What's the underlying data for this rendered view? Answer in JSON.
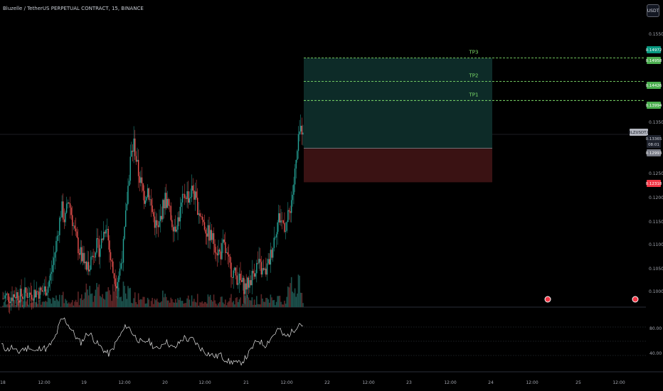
{
  "header": {
    "title": "Bluzelle / TetherUS PERPETUAL CONTRACT, 15, BINANCE",
    "currency_button": "USDT"
  },
  "colors": {
    "background": "#000000",
    "up": "#26a69a",
    "down": "#ef5350",
    "target_zone": "#0d2b28",
    "stop_zone": "#3a1213",
    "tp_line": "#7ddc6a",
    "rsi_line": "#e6e6e6"
  },
  "chart_data": {
    "type": "candlestick",
    "symbol": "BLZUSDT.P",
    "interval": "15",
    "price_axis": {
      "ticks": [
        "0.15500",
        "0.13500",
        "0.12500",
        "0.12000",
        "0.11500",
        "0.11000",
        "0.10500",
        "0.10000"
      ],
      "range": [
        0.0965,
        0.159
      ]
    },
    "time_axis": {
      "ticks": [
        "18",
        "12:00",
        "19",
        "12:00",
        "20",
        "12:00",
        "21",
        "12:00",
        "22",
        "12:00",
        "23",
        "12:00",
        "24",
        "12:00",
        "25",
        "12:00"
      ]
    },
    "price_close_path": [
      0.0985,
      0.099,
      0.0988,
      0.0992,
      0.0995,
      0.099,
      0.0993,
      0.0996,
      0.0994,
      0.0998,
      0.1,
      0.0998,
      0.1003,
      0.101,
      0.104,
      0.108,
      0.113,
      0.118,
      0.115,
      0.12,
      0.116,
      0.112,
      0.109,
      0.107,
      0.105,
      0.106,
      0.108,
      0.11,
      0.109,
      0.112,
      0.115,
      0.108,
      0.104,
      0.102,
      0.105,
      0.11,
      0.12,
      0.128,
      0.131,
      0.126,
      0.123,
      0.12,
      0.122,
      0.118,
      0.115,
      0.113,
      0.117,
      0.12,
      0.118,
      0.115,
      0.114,
      0.116,
      0.119,
      0.121,
      0.12,
      0.122,
      0.119,
      0.117,
      0.115,
      0.113,
      0.112,
      0.111,
      0.109,
      0.108,
      0.11,
      0.107,
      0.105,
      0.104,
      0.103,
      0.102,
      0.101,
      0.1015,
      0.103,
      0.105,
      0.106,
      0.1045,
      0.104,
      0.106,
      0.109,
      0.113,
      0.116,
      0.115,
      0.114,
      0.117,
      0.121,
      0.127,
      0.133,
      0.1345
    ],
    "trade_setup": {
      "entry": 0.12993,
      "stop": 0.12318,
      "targets": [
        {
          "label": "TP1",
          "price": 0.13994
        },
        {
          "label": "TP2",
          "price": 0.14426
        },
        {
          "label": "TP3",
          "price": 0.14958
        }
      ]
    },
    "price_tags": [
      {
        "text": "0.14972",
        "color": "#089981"
      },
      {
        "text": "0.14958",
        "color": "#4caf50"
      },
      {
        "text": "0.14426",
        "color": "#4caf50"
      },
      {
        "text": "0.13994",
        "color": "#4caf50"
      },
      {
        "text": "BLZUSDT.P",
        "color": "#b2b5be"
      },
      {
        "text": "0.13365",
        "color": "#b2b5be"
      },
      {
        "text": "08:01",
        "color": "#b2b5be"
      },
      {
        "text": "0.12993",
        "color": "#787b86"
      },
      {
        "text": "0.12318",
        "color": "#f23645"
      }
    ],
    "rsi": {
      "ticks": [
        "80.00",
        "40.00"
      ],
      "range": [
        20,
        100
      ],
      "values": [
        55,
        50,
        48,
        52,
        46,
        44,
        50,
        48,
        53,
        47,
        45,
        50,
        52,
        48,
        55,
        60,
        72,
        88,
        92,
        85,
        78,
        70,
        62,
        58,
        66,
        72,
        68,
        60,
        55,
        50,
        45,
        42,
        48,
        58,
        66,
        74,
        82,
        78,
        70,
        64,
        60,
        56,
        62,
        58,
        52,
        48,
        54,
        60,
        58,
        52,
        50,
        56,
        62,
        66,
        60,
        64,
        58,
        52,
        48,
        44,
        42,
        40,
        38,
        42,
        36,
        34,
        30,
        32,
        28,
        30,
        34,
        40,
        48,
        56,
        62,
        58,
        54,
        60,
        66,
        72,
        78,
        70,
        66,
        70,
        74,
        80,
        86,
        82
      ]
    }
  }
}
